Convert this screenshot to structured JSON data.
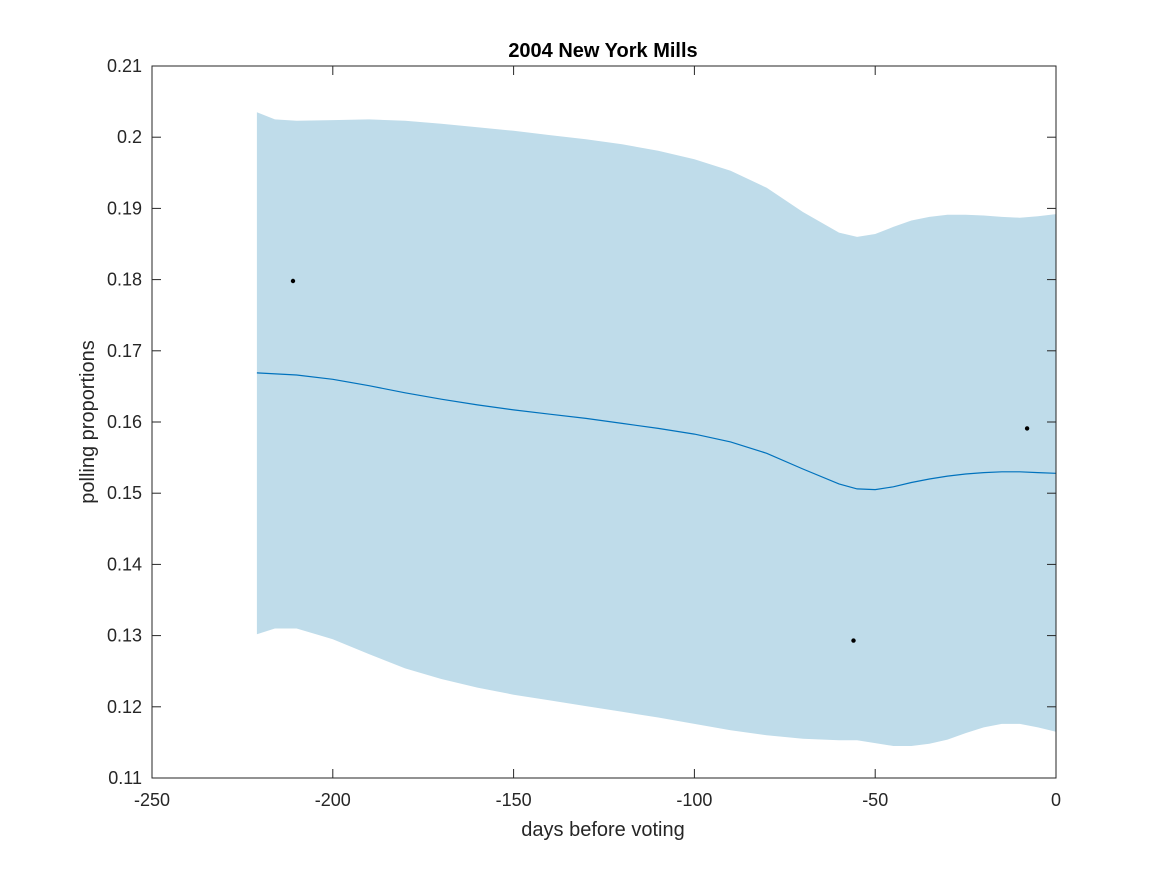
{
  "chart_data": {
    "type": "line",
    "title": "2004 New York Mills",
    "xlabel": "days before voting",
    "ylabel": "polling proportions",
    "xlim": [
      -250,
      0
    ],
    "ylim": [
      0.11,
      0.21
    ],
    "x_ticks": [
      -250,
      -200,
      -150,
      -100,
      -50,
      0
    ],
    "x_tick_labels": [
      "-250",
      "-200",
      "-150",
      "-100",
      "-50",
      "0"
    ],
    "y_ticks": [
      0.11,
      0.12,
      0.13,
      0.14,
      0.15,
      0.16,
      0.17,
      0.18,
      0.19,
      0.2,
      0.21
    ],
    "y_tick_labels": [
      "0.11",
      "0.12",
      "0.13",
      "0.14",
      "0.15",
      "0.16",
      "0.17",
      "0.18",
      "0.19",
      "0.2",
      "0.21"
    ],
    "grid": false,
    "series": [
      {
        "kind": "band",
        "color": "#bfdcea",
        "x": [
          -221,
          -216,
          -210,
          -200,
          -190,
          -180,
          -170,
          -160,
          -150,
          -140,
          -130,
          -120,
          -110,
          -100,
          -90,
          -80,
          -70,
          -60,
          -55,
          -50,
          -45,
          -40,
          -35,
          -30,
          -25,
          -20,
          -15,
          -10,
          -5,
          0
        ],
        "upper": [
          0.2035,
          0.2025,
          0.2023,
          0.2024,
          0.2025,
          0.2023,
          0.2019,
          0.2014,
          0.2009,
          0.2003,
          0.1997,
          0.199,
          0.1981,
          0.1969,
          0.1953,
          0.1929,
          0.1895,
          0.1866,
          0.186,
          0.1864,
          0.1874,
          0.1883,
          0.1888,
          0.1891,
          0.1891,
          0.189,
          0.1888,
          0.1887,
          0.1889,
          0.1892
        ],
        "lower": [
          0.1302,
          0.131,
          0.131,
          0.1295,
          0.1274,
          0.1254,
          0.1239,
          0.1227,
          0.1217,
          0.1209,
          0.1201,
          0.1193,
          0.1185,
          0.1176,
          0.1167,
          0.116,
          0.1155,
          0.1153,
          0.1153,
          0.1149,
          0.1145,
          0.1145,
          0.1148,
          0.1154,
          0.1163,
          0.1171,
          0.1176,
          0.1176,
          0.1171,
          0.1165
        ]
      },
      {
        "kind": "line",
        "color": "#0072bd",
        "x": [
          -221,
          -210,
          -200,
          -190,
          -180,
          -170,
          -160,
          -150,
          -140,
          -130,
          -120,
          -110,
          -100,
          -90,
          -80,
          -70,
          -60,
          -55,
          -50,
          -45,
          -40,
          -35,
          -30,
          -25,
          -20,
          -15,
          -10,
          -5,
          0
        ],
        "y": [
          0.1669,
          0.1666,
          0.166,
          0.1651,
          0.1641,
          0.1632,
          0.1624,
          0.1617,
          0.1611,
          0.1605,
          0.1598,
          0.1591,
          0.1583,
          0.1572,
          0.1556,
          0.1534,
          0.1513,
          0.1506,
          0.1505,
          0.1509,
          0.1515,
          0.152,
          0.1524,
          0.1527,
          0.1529,
          0.153,
          0.153,
          0.1529,
          0.1528
        ]
      },
      {
        "kind": "scatter",
        "color": "#000000",
        "x": [
          -211,
          -56,
          -8
        ],
        "y": [
          0.1798,
          0.1293,
          0.1591
        ]
      }
    ]
  }
}
